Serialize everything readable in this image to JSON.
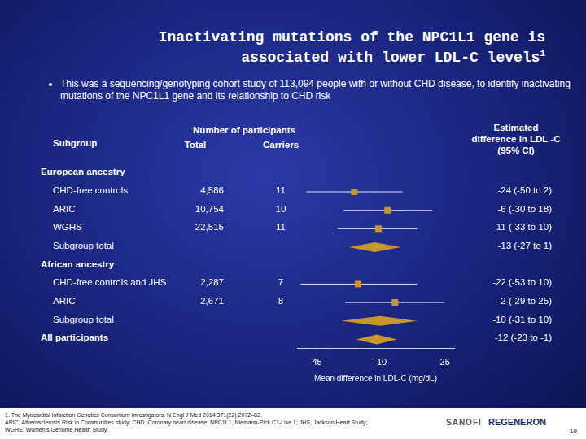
{
  "title": "Inactivating mutations of the NPC1L1 gene is associated with lower LDL-C levels",
  "title_note": "1",
  "bullet": "This was a sequencing/genotyping cohort study of 113,094 people with or without CHD disease, to identify inactivating mutations of the NPC1L1 gene and its relationship to CHD risk",
  "table_header": {
    "subgroup": "Subgroup",
    "participants": "Number of participants",
    "total": "Total",
    "carriers": "Carriers",
    "estimate": "Estimated difference in LDL -C (95% CI)"
  },
  "chart_data": {
    "type": "forest",
    "xlabel": "Mean difference in LDL-C (mg/dL)",
    "xlim": [
      -55,
      30
    ],
    "xticks": [
      -45,
      -10,
      25
    ],
    "color": "#c9962e",
    "groups": [
      {
        "name": "European ancestry",
        "rows": [
          {
            "label": "CHD-free controls",
            "total": "4,586",
            "carriers": 11,
            "estimate": -24,
            "ci": [
              -50,
              2
            ],
            "ci_label": "-24 (-50 to 2)",
            "marker": "square"
          },
          {
            "label": "ARIC",
            "total": "10,754",
            "carriers": 10,
            "estimate": -6,
            "ci": [
              -30,
              18
            ],
            "ci_label": "-6 (-30 to 18)",
            "marker": "square"
          },
          {
            "label": "WGHS",
            "total": "22,515",
            "carriers": 11,
            "estimate": -11,
            "ci": [
              -33,
              10
            ],
            "ci_label": "-11 (-33 to 10)",
            "marker": "square"
          },
          {
            "label": "Subgroup total",
            "estimate": -13,
            "ci": [
              -27,
              1
            ],
            "ci_label": "-13 (-27 to 1)",
            "marker": "diamond"
          }
        ]
      },
      {
        "name": "African ancestry",
        "rows": [
          {
            "label": "CHD-free controls and JHS",
            "total": "2,287",
            "carriers": 7,
            "estimate": -22,
            "ci": [
              -53,
              10
            ],
            "ci_label": "-22 (-53 to 10)",
            "marker": "square"
          },
          {
            "label": "ARIC",
            "total": "2,671",
            "carriers": 8,
            "estimate": -2,
            "ci": [
              -29,
              25
            ],
            "ci_label": "-2 (-29 to 25)",
            "marker": "square"
          },
          {
            "label": "Subgroup total",
            "estimate": -10,
            "ci": [
              -31,
              10
            ],
            "ci_label": "-10 (-31 to 10)",
            "marker": "diamond"
          }
        ]
      }
    ],
    "overall": {
      "label": "All participants",
      "estimate": -12,
      "ci": [
        -23,
        -1
      ],
      "ci_label": "-12 (-23 to -1)",
      "marker": "diamond"
    }
  },
  "footnotes": [
    "1. The Myocardial Infarction Genetics Consortium Investigators. N Engl J Med 2014;371(22):2072–82.",
    "ARIC, Atherosclerosis Risk in Communities study; CHD, Coronary heart disease; NPC1L1, Niemann-Pick C1-Like 1; JHS, Jackson Heart Study;",
    "WGHS, Women's Genome Health Study."
  ],
  "logos": [
    "SANOFI",
    "REGENERON"
  ],
  "page": "19"
}
